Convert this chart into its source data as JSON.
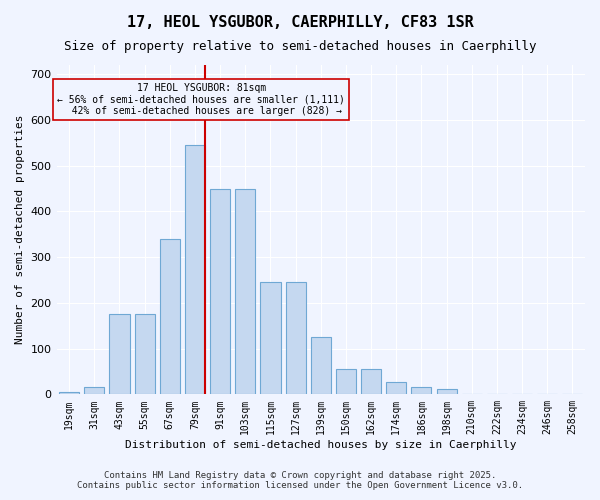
{
  "title_line1": "17, HEOL YSGUBOR, CAERPHILLY, CF83 1SR",
  "title_line2": "Size of property relative to semi-detached houses in Caerphilly",
  "xlabel": "Distribution of semi-detached houses by size in Caerphilly",
  "ylabel": "Number of semi-detached properties",
  "categories": [
    "19sqm",
    "31sqm",
    "43sqm",
    "55sqm",
    "67sqm",
    "79sqm",
    "91sqm",
    "103sqm",
    "115sqm",
    "127sqm",
    "139sqm",
    "150sqm",
    "162sqm",
    "174sqm",
    "186sqm",
    "198sqm",
    "210sqm",
    "222sqm",
    "234sqm",
    "246sqm",
    "258sqm"
  ],
  "values": [
    5,
    15,
    175,
    175,
    340,
    545,
    450,
    450,
    245,
    245,
    125,
    55,
    55,
    28,
    15,
    12,
    0,
    0,
    0,
    0,
    0
  ],
  "bar_color": "#c5d8f0",
  "bar_edge_color": "#6fa8d4",
  "subject_value": 81,
  "subject_label": "17 HEOL YSGUBOR: 81sqm",
  "subject_line_color": "#cc0000",
  "pct_smaller": 56,
  "pct_smaller_count": 1111,
  "pct_larger": 42,
  "pct_larger_count": 828,
  "annotation_box_color": "#cc0000",
  "ylim": [
    0,
    720
  ],
  "yticks": [
    0,
    100,
    200,
    300,
    400,
    500,
    600,
    700
  ],
  "background_color": "#f0f4ff",
  "grid_color": "#ffffff",
  "footer_line1": "Contains HM Land Registry data © Crown copyright and database right 2025.",
  "footer_line2": "Contains public sector information licensed under the Open Government Licence v3.0.",
  "bin_width": 12
}
